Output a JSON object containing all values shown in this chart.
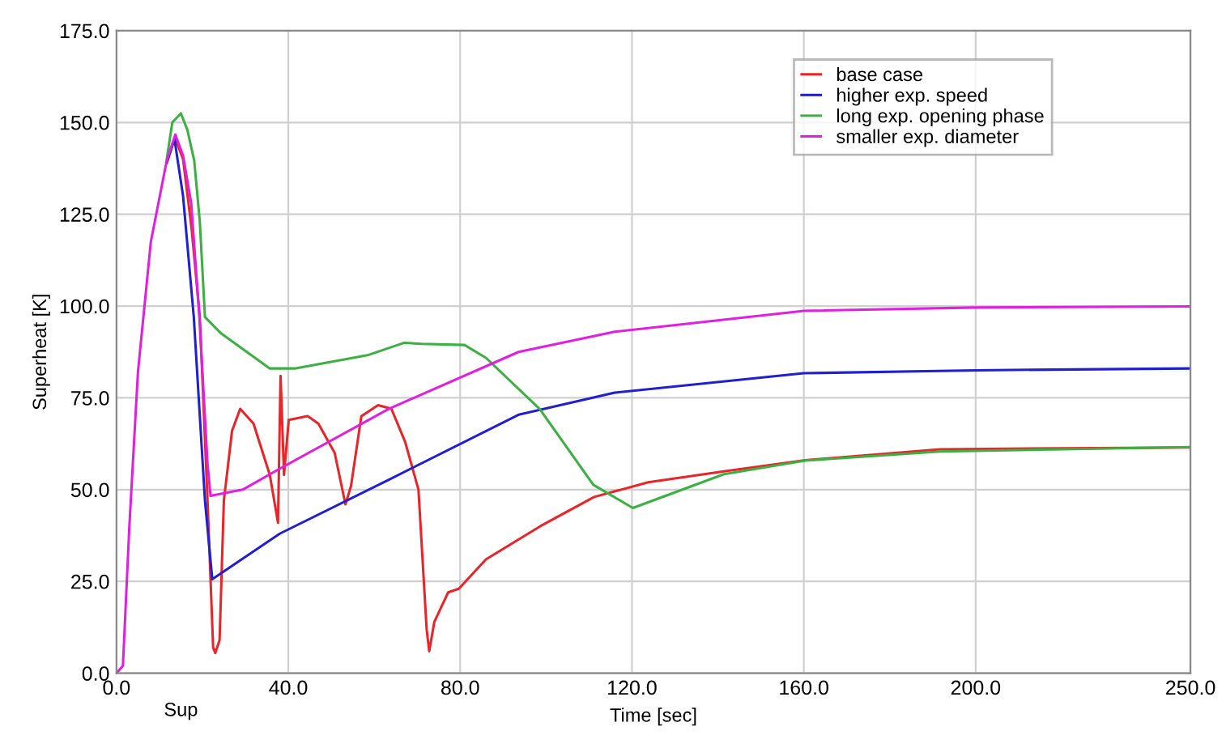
{
  "chart_data": {
    "type": "line",
    "xlabel": "Time [sec]",
    "ylabel": "Superheat [K]",
    "xlim": [
      0,
      250
    ],
    "ylim": [
      0,
      175
    ],
    "xticks": [
      {
        "value": 0,
        "label": "0.0"
      },
      {
        "value": 40,
        "label": "40.0"
      },
      {
        "value": 80,
        "label": "80.0"
      },
      {
        "value": 120,
        "label": "120.0"
      },
      {
        "value": 160,
        "label": "160.0"
      },
      {
        "value": 200,
        "label": "200.0"
      },
      {
        "value": 250,
        "label": "250.0"
      }
    ],
    "yticks": [
      {
        "value": 0,
        "label": "0.0"
      },
      {
        "value": 25,
        "label": "25.0"
      },
      {
        "value": 50,
        "label": "50.0"
      },
      {
        "value": 75,
        "label": "75.0"
      },
      {
        "value": 100,
        "label": "100.0"
      },
      {
        "value": 125,
        "label": "125.0"
      },
      {
        "value": 150,
        "label": "150.0"
      },
      {
        "value": 175,
        "label": "175.0"
      }
    ],
    "grid": true,
    "legend": "top right",
    "marker": "none",
    "line_style": "solid",
    "annotations": [
      "Sup"
    ],
    "series": [
      {
        "name": "base case",
        "color": "#e8262a",
        "x": [
          11.7,
          13.6,
          15.5,
          17.5,
          19.4,
          21.2,
          22.5,
          23,
          24,
          25,
          26.9,
          28.8,
          31.9,
          35.7,
          37.6,
          38.2,
          39,
          40.1,
          44.5,
          47,
          50.8,
          53.3,
          54.6,
          57,
          60.9,
          64,
          67.2,
          70.3,
          72.2,
          72.8,
          74,
          77.2,
          79.7,
          86,
          98.6,
          111.2,
          123.8,
          141.4,
          160.3,
          191.7,
          250
        ],
        "values": [
          139,
          146,
          140,
          121,
          97,
          47,
          7,
          5.5,
          9,
          47,
          66,
          72,
          68,
          54,
          41,
          81,
          54,
          69,
          70,
          68,
          60,
          46,
          51,
          70,
          73,
          72,
          63,
          50,
          12,
          6,
          14,
          22,
          23,
          31,
          40,
          48,
          52,
          55,
          58,
          61,
          61.5
        ]
      },
      {
        "name": "higher exp. speed",
        "color": "#2020d0",
        "x": [
          11.7,
          13.5,
          15.5,
          18,
          20.6,
          22.3,
          38,
          63.4,
          93.6,
          116,
          160,
          200,
          250
        ],
        "values": [
          139,
          145.5,
          130,
          97,
          47,
          25.6,
          38,
          52.7,
          70.4,
          76.4,
          81.7,
          82.5,
          83
        ]
      },
      {
        "name": "long exp. opening phase",
        "color": "#3cb043",
        "x": [
          11.7,
          13,
          15,
          16.5,
          18.1,
          19.4,
          20.6,
          24.4,
          35.7,
          41.5,
          58.4,
          67,
          71,
          81,
          86,
          98.5,
          111,
          120.2,
          141.4,
          160.3,
          191.7,
          250
        ],
        "values": [
          140,
          150,
          152.5,
          148,
          139.6,
          123,
          97,
          92.5,
          83,
          83,
          86.6,
          90,
          89.7,
          89.4,
          85.9,
          72,
          51.3,
          45,
          54.2,
          57.9,
          60.4,
          61.6
        ]
      },
      {
        "name": "smaller exp. diameter",
        "color": "#e020e0",
        "x": [
          0,
          1.5,
          3,
          5,
          8,
          11.7,
          13.7,
          15.5,
          17.4,
          19.3,
          21.2,
          21.9,
          29.4,
          38,
          63.4,
          93.6,
          116,
          160,
          200,
          250
        ],
        "values": [
          0,
          2,
          40,
          82,
          117.5,
          139.6,
          146.7,
          141,
          128,
          97,
          57,
          48.3,
          50,
          55.7,
          72,
          87.5,
          93,
          98.7,
          99.6,
          99.9
        ]
      }
    ]
  }
}
